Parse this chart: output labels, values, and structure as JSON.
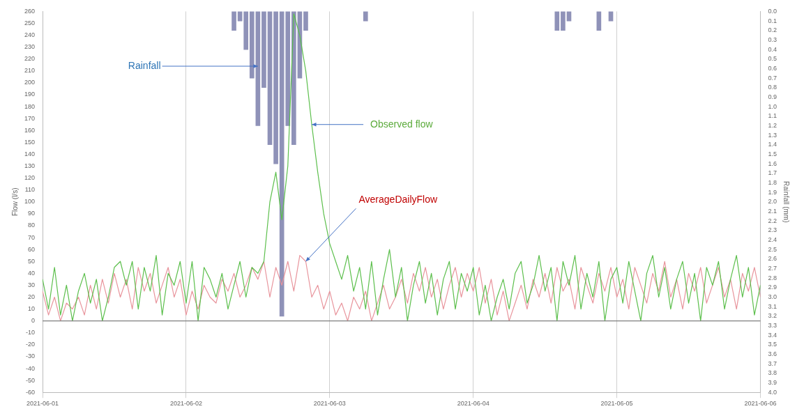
{
  "chart_data": {
    "type": "line",
    "ylabel": "Flow (l/s)",
    "y2label": "Rainfall (mm)",
    "xlim": [
      "2021-06-01",
      "2021-06-06"
    ],
    "xticks": [
      "2021-06-01",
      "2021-06-02",
      "2021-06-03",
      "2021-06-04",
      "2021-06-05",
      "2021-06-06"
    ],
    "ylim": [
      -60,
      260
    ],
    "yticks": [
      -60,
      -50,
      -40,
      -30,
      -20,
      -10,
      0,
      10,
      20,
      30,
      40,
      50,
      60,
      70,
      80,
      90,
      100,
      110,
      120,
      130,
      140,
      150,
      160,
      170,
      180,
      190,
      200,
      210,
      220,
      230,
      240,
      250,
      260
    ],
    "y2lim": [
      4,
      0
    ],
    "y2ticks": [
      {
        "value": 0,
        "label": "0.0"
      },
      0.1,
      0.2,
      0.3,
      0.4,
      0.5,
      0.6,
      0.7,
      0.8,
      0.9,
      {
        "value": 1,
        "label": "1.0"
      },
      1.1,
      1.2,
      1.3,
      1.4,
      1.5,
      1.6,
      1.7,
      1.8,
      1.9,
      {
        "value": 2,
        "label": "2.0"
      },
      2.1,
      2.2,
      2.3,
      2.4,
      2.5,
      2.6,
      2.7,
      2.8,
      2.9,
      {
        "value": 3,
        "label": "3.0"
      },
      3.1,
      3.2,
      3.3,
      3.4,
      3.5,
      3.6,
      3.7,
      3.8,
      3.9,
      {
        "value": 4,
        "label": "4.0"
      }
    ],
    "grid": "x",
    "legend": false,
    "marker": "none",
    "line_style": "solid",
    "ref_lines": [
      {
        "axis": "y",
        "value": 0,
        "color": "#7f7f7f"
      }
    ],
    "x": [
      "2021-06-01T00:00",
      "2021-06-01T01:00",
      "2021-06-01T02:00",
      "2021-06-01T03:00",
      "2021-06-01T04:00",
      "2021-06-01T05:00",
      "2021-06-01T06:00",
      "2021-06-01T07:00",
      "2021-06-01T08:00",
      "2021-06-01T09:00",
      "2021-06-01T10:00",
      "2021-06-01T11:00",
      "2021-06-01T12:00",
      "2021-06-01T13:00",
      "2021-06-01T14:00",
      "2021-06-01T15:00",
      "2021-06-01T16:00",
      "2021-06-01T17:00",
      "2021-06-01T18:00",
      "2021-06-01T19:00",
      "2021-06-01T20:00",
      "2021-06-01T21:00",
      "2021-06-01T22:00",
      "2021-06-01T23:00",
      "2021-06-02T00:00",
      "2021-06-02T01:00",
      "2021-06-02T02:00",
      "2021-06-02T03:00",
      "2021-06-02T04:00",
      "2021-06-02T05:00",
      "2021-06-02T06:00",
      "2021-06-02T07:00",
      "2021-06-02T08:00",
      "2021-06-02T09:00",
      "2021-06-02T10:00",
      "2021-06-02T11:00",
      "2021-06-02T12:00",
      "2021-06-02T13:00",
      "2021-06-02T14:00",
      "2021-06-02T15:00",
      "2021-06-02T16:00",
      "2021-06-02T17:00",
      "2021-06-02T18:00",
      "2021-06-02T19:00",
      "2021-06-02T20:00",
      "2021-06-02T21:00",
      "2021-06-02T22:00",
      "2021-06-02T23:00",
      "2021-06-03T00:00",
      "2021-06-03T01:00",
      "2021-06-03T02:00",
      "2021-06-03T03:00",
      "2021-06-03T04:00",
      "2021-06-03T05:00",
      "2021-06-03T06:00",
      "2021-06-03T07:00",
      "2021-06-03T08:00",
      "2021-06-03T09:00",
      "2021-06-03T10:00",
      "2021-06-03T11:00",
      "2021-06-03T12:00",
      "2021-06-03T13:00",
      "2021-06-03T14:00",
      "2021-06-03T15:00",
      "2021-06-03T16:00",
      "2021-06-03T17:00",
      "2021-06-03T18:00",
      "2021-06-03T19:00",
      "2021-06-03T20:00",
      "2021-06-03T21:00",
      "2021-06-03T22:00",
      "2021-06-03T23:00",
      "2021-06-04T00:00",
      "2021-06-04T01:00",
      "2021-06-04T02:00",
      "2021-06-04T03:00",
      "2021-06-04T04:00",
      "2021-06-04T05:00",
      "2021-06-04T06:00",
      "2021-06-04T07:00",
      "2021-06-04T08:00",
      "2021-06-04T09:00",
      "2021-06-04T10:00",
      "2021-06-04T11:00",
      "2021-06-04T12:00",
      "2021-06-04T13:00",
      "2021-06-04T14:00",
      "2021-06-04T15:00",
      "2021-06-04T16:00",
      "2021-06-04T17:00",
      "2021-06-04T18:00",
      "2021-06-04T19:00",
      "2021-06-04T20:00",
      "2021-06-04T21:00",
      "2021-06-04T22:00",
      "2021-06-04T23:00",
      "2021-06-05T00:00",
      "2021-06-05T01:00",
      "2021-06-05T02:00",
      "2021-06-05T03:00",
      "2021-06-05T04:00",
      "2021-06-05T05:00",
      "2021-06-05T06:00",
      "2021-06-05T07:00",
      "2021-06-05T08:00",
      "2021-06-05T09:00",
      "2021-06-05T10:00",
      "2021-06-05T11:00",
      "2021-06-05T12:00",
      "2021-06-05T13:00",
      "2021-06-05T14:00",
      "2021-06-05T15:00",
      "2021-06-05T16:00",
      "2021-06-05T17:00",
      "2021-06-05T18:00",
      "2021-06-05T19:00",
      "2021-06-05T20:00",
      "2021-06-05T21:00",
      "2021-06-05T22:00",
      "2021-06-05T23:00",
      "2021-06-06T00:00"
    ],
    "series": [
      {
        "type": "bar",
        "axis": "y2",
        "color": "#8f92b8",
        "x": [
          "2021-06-02T08:00",
          "2021-06-02T09:00",
          "2021-06-02T10:00",
          "2021-06-02T11:00",
          "2021-06-02T12:00",
          "2021-06-02T13:00",
          "2021-06-02T14:00",
          "2021-06-02T15:00",
          "2021-06-02T16:00",
          "2021-06-02T17:00",
          "2021-06-02T18:00",
          "2021-06-02T19:00",
          "2021-06-02T20:00",
          "2021-06-03T06:00",
          "2021-06-04T14:00",
          "2021-06-04T15:00",
          "2021-06-04T16:00",
          "2021-06-04T21:00",
          "2021-06-04T23:00"
        ],
        "values": [
          0.2,
          0.1,
          0.4,
          0.7,
          1.2,
          0.8,
          1.4,
          1.6,
          3.2,
          1.2,
          1.4,
          0.7,
          0.2,
          0.1,
          0.2,
          0.2,
          0.1,
          0.2,
          0.1
        ]
      },
      {
        "color": "#e8949c",
        "values": [
          25,
          5,
          20,
          0,
          15,
          10,
          20,
          5,
          30,
          10,
          35,
          15,
          40,
          20,
          35,
          10,
          45,
          25,
          40,
          15,
          30,
          45,
          20,
          35,
          5,
          25,
          10,
          30,
          20,
          15,
          35,
          25,
          40,
          20,
          30,
          45,
          35,
          50,
          20,
          45,
          30,
          50,
          25,
          55,
          50,
          20,
          30,
          10,
          25,
          5,
          15,
          0,
          20,
          10,
          25,
          0,
          15,
          30,
          10,
          20,
          35,
          15,
          40,
          25,
          45,
          20,
          35,
          10,
          30,
          45,
          20,
          40,
          25,
          45,
          15,
          35,
          5,
          25,
          0,
          15,
          30,
          10,
          35,
          20,
          40,
          15,
          45,
          25,
          35,
          10,
          45,
          30,
          15,
          40,
          25,
          45,
          20,
          35,
          10,
          45,
          30,
          15,
          40,
          25,
          50,
          20,
          35,
          10,
          40,
          25,
          45,
          15,
          30,
          45,
          20,
          35,
          10,
          40,
          25,
          45,
          20
        ]
      },
      {
        "color": "#5cbf4c",
        "values": [
          35,
          10,
          45,
          5,
          30,
          0,
          25,
          40,
          15,
          35,
          0,
          20,
          45,
          50,
          30,
          50,
          10,
          45,
          25,
          55,
          5,
          40,
          30,
          50,
          15,
          50,
          0,
          45,
          35,
          20,
          40,
          10,
          30,
          50,
          20,
          45,
          40,
          50,
          100,
          125,
          85,
          130,
          258,
          240,
          210,
          165,
          125,
          90,
          65,
          50,
          35,
          55,
          25,
          45,
          10,
          50,
          5,
          35,
          60,
          20,
          45,
          0,
          30,
          50,
          15,
          40,
          5,
          35,
          50,
          10,
          40,
          25,
          45,
          5,
          30,
          0,
          20,
          35,
          10,
          40,
          50,
          15,
          30,
          55,
          25,
          45,
          0,
          50,
          30,
          55,
          10,
          40,
          20,
          50,
          0,
          35,
          45,
          15,
          50,
          25,
          0,
          40,
          55,
          20,
          45,
          10,
          35,
          50,
          15,
          40,
          0,
          45,
          30,
          50,
          10,
          35,
          55,
          20,
          45,
          5,
          30
        ]
      }
    ],
    "annotations": [
      {
        "text": "Rainfall",
        "x": "2021-06-02T12:00",
        "y": 214
      },
      {
        "text": "Observed flow",
        "x": "2021-06-02T21:00",
        "y": 165
      },
      {
        "text": "AverageDailyFlow",
        "x": "2021-06-02T20:00",
        "y": 50
      }
    ]
  }
}
